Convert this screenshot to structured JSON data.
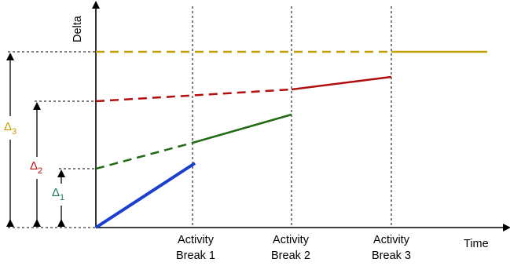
{
  "axes": {
    "y_label": "Delta",
    "x_label": "Time"
  },
  "breaks": [
    {
      "line1": "Activity",
      "line2": "Break 1"
    },
    {
      "line1": "Activity",
      "line2": "Break 2"
    },
    {
      "line1": "Activity",
      "line2": "Break 3"
    }
  ],
  "deltas": [
    {
      "symbol": "Δ",
      "sub": "1",
      "color": "#1a7a5a"
    },
    {
      "symbol": "Δ",
      "sub": "2",
      "color": "#bb1111"
    },
    {
      "symbol": "Δ",
      "sub": "3",
      "color": "#c0a000"
    }
  ],
  "colors": {
    "blue": "#1a3fd0",
    "green": "#1f6b12",
    "red": "#b30e0e",
    "gold": "#c0a000",
    "guide": "#000000"
  }
}
